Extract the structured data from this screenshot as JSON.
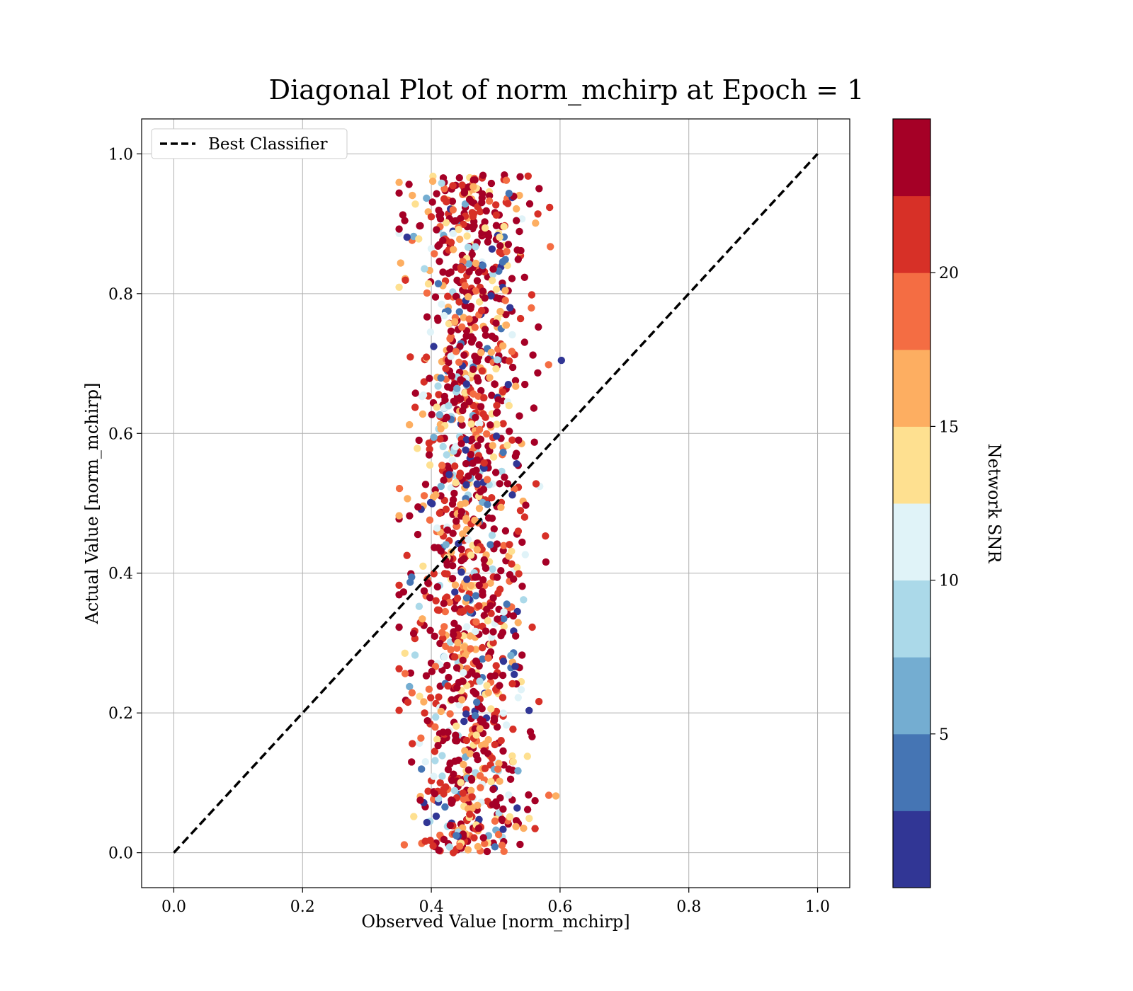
{
  "chart_data": {
    "type": "scatter",
    "title": "Diagonal Plot of norm_mchirp at Epoch = 1",
    "xlabel": "Observed Value [norm_mchirp]",
    "ylabel": "Actual Value [norm_mchirp]",
    "xlim": [
      -0.05,
      1.05
    ],
    "ylim": [
      -0.05,
      1.05
    ],
    "xticks": [
      "0.0",
      "0.2",
      "0.4",
      "0.6",
      "0.8",
      "1.0"
    ],
    "yticks": [
      "0.0",
      "0.2",
      "0.4",
      "0.6",
      "0.8",
      "1.0"
    ],
    "grid": true,
    "legend": {
      "placement": "top-left",
      "entries": [
        "Best Classifier"
      ]
    },
    "reference_line": {
      "name": "Best Classifier",
      "style": "dashed",
      "color": "#000000",
      "x": [
        0.0,
        1.0
      ],
      "y": [
        0.0,
        1.0
      ]
    },
    "colorbar": {
      "label": "Network SNR",
      "range": [
        0,
        25
      ],
      "ticks": [
        "5",
        "10",
        "15",
        "20"
      ],
      "tick_values": [
        5,
        10,
        15,
        20
      ],
      "colors": [
        "#313695",
        "#4575b4",
        "#74add1",
        "#abd9e9",
        "#e0f3f8",
        "#fee090",
        "#fdae61",
        "#f46d43",
        "#d73027",
        "#a50026"
      ]
    },
    "points": {
      "count": 1400,
      "x_center": 0.46,
      "x_spread": 0.045,
      "x_range": [
        0.35,
        0.61
      ],
      "y_range": [
        0.0,
        0.97
      ],
      "snr_distribution": "mostly high (red/orange), some low (blue)"
    }
  }
}
